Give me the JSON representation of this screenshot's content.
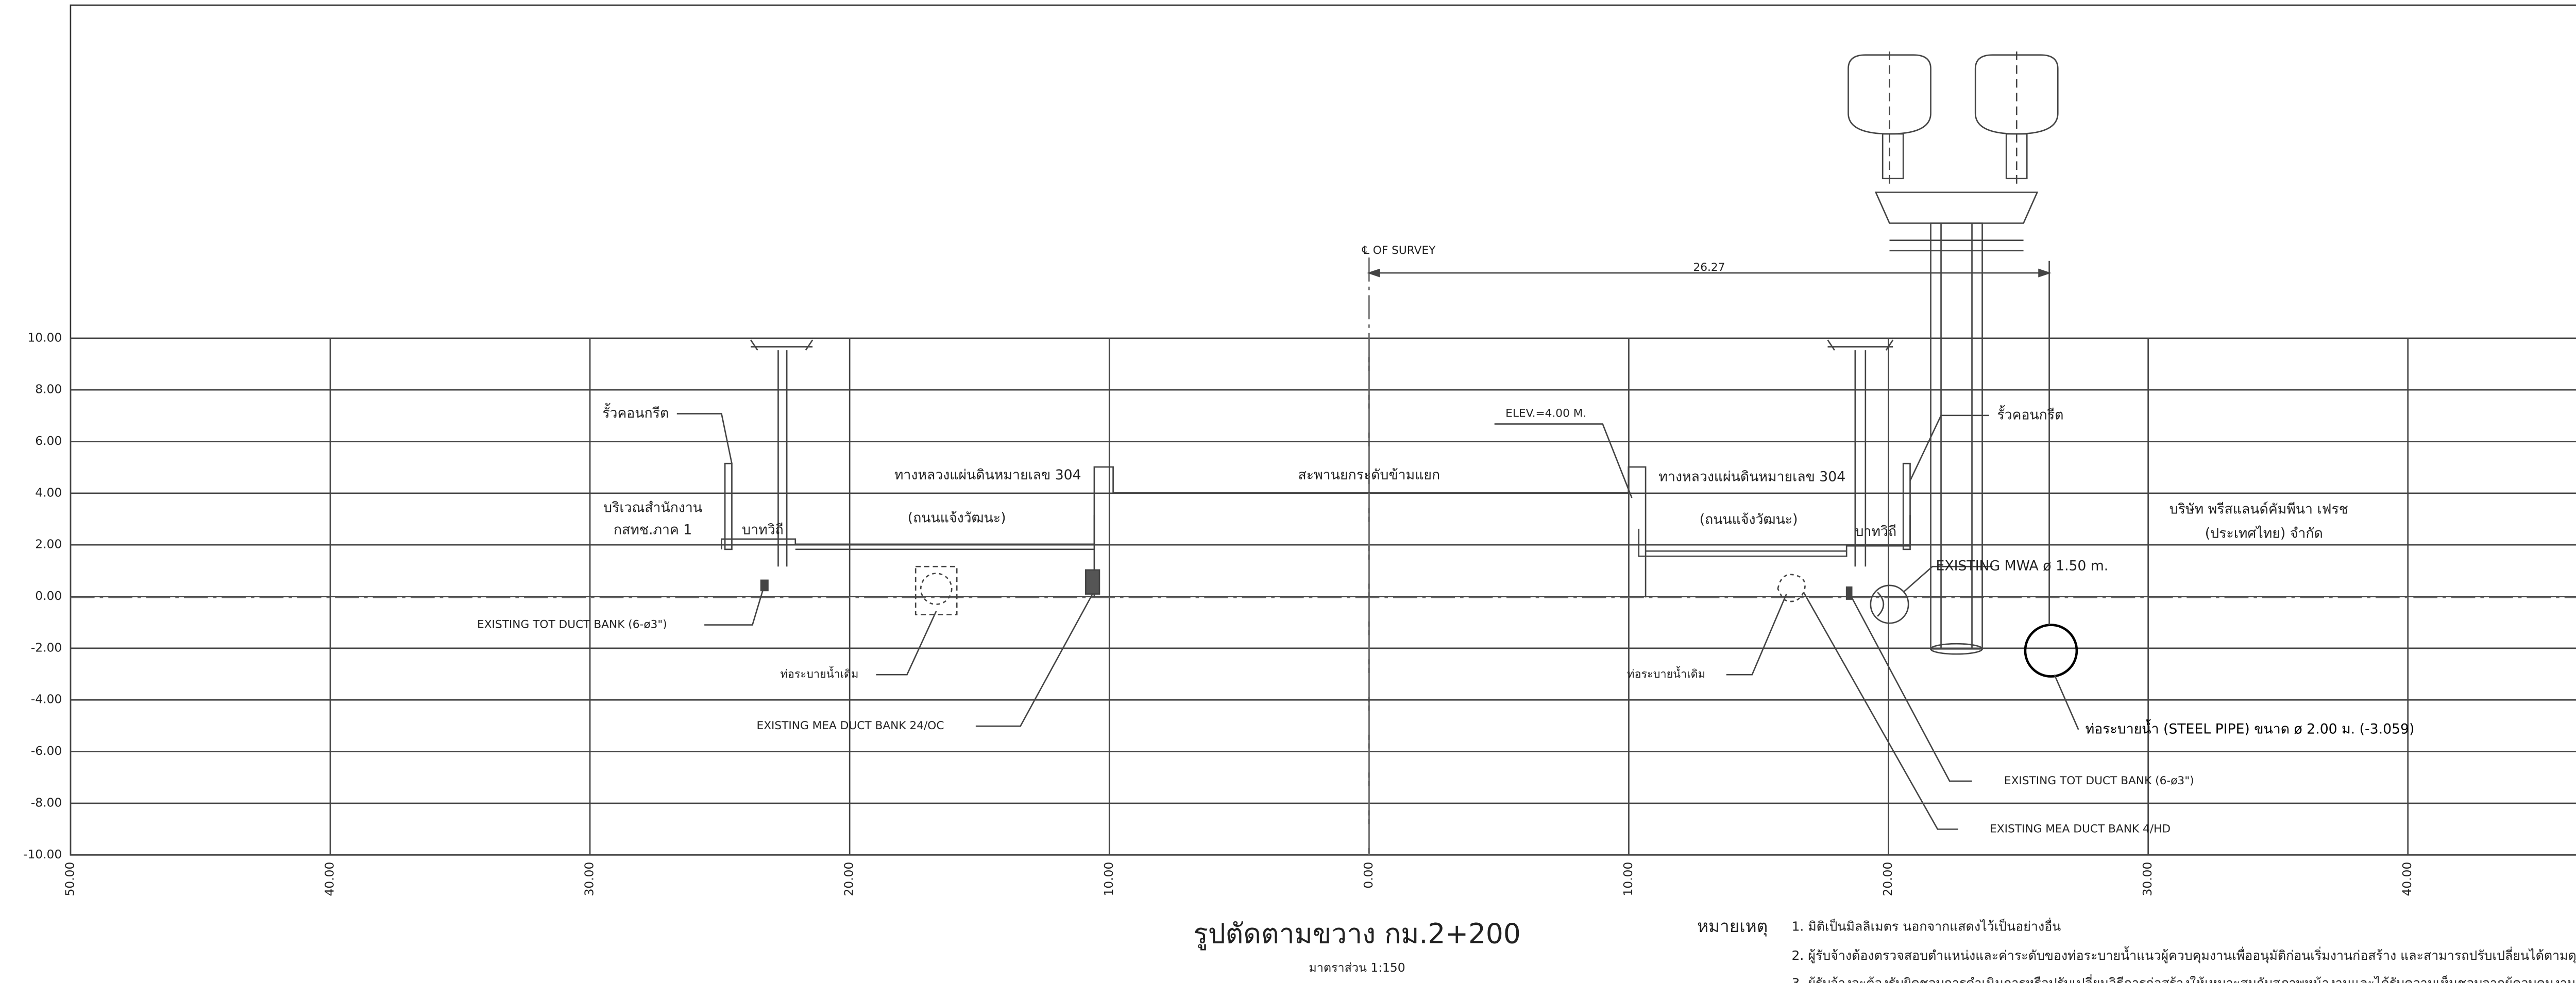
{
  "axis": {
    "y_ticks": [
      "10.00",
      "8.00",
      "6.00",
      "4.00",
      "2.00",
      "0.00",
      "-2.00",
      "-4.00",
      "-6.00",
      "-8.00",
      "-10.00"
    ],
    "x_ticks": [
      "50.00",
      "40.00",
      "30.00",
      "20.00",
      "10.00",
      "0.00",
      "10.00",
      "20.00",
      "30.00",
      "40.00",
      "50.00"
    ]
  },
  "annotations": [
    "℄ OF SURVEY",
    "26.27",
    "รั้วคอนกรีต",
    "รั้วคอนกรีต",
    "บริเวณสำนักงาน",
    "กสทช.ภาค 1",
    "บาทวิถี",
    "บาทวิถี",
    "ทางหลวงแผ่นดินหมายเลข 304",
    "ทางหลวงแผ่นดินหมายเลข 304",
    "(ถนนแจ้งวัฒนะ)",
    "(ถนนแจ้งวัฒนะ)",
    "สะพานยกระดับข้ามแยก",
    "ELEV.=4.00 M.",
    "บริษัท พรีสแลนด์คัมพีนา เฟรช",
    "(ประเทศไทย) จำกัด",
    "EXISTING MWA ø 1.50 m.",
    "EXISTING TOT DUCT BANK (6-ø3\")",
    "EXISTING TOT DUCT BANK (6-ø3\")",
    "ท่อระบายน้ำเดิม",
    "ท่อระบายน้ำเดิม",
    "EXISTING MEA DUCT BANK 24/OC",
    "ท่อระบายน้ำ (STEEL PIPE) ขนาด ø 2.00 ม. (-3.059)",
    "EXISTING MEA DUCT BANK 4/HD"
  ],
  "title": "รูปตัดตามขวาง กม.2+200",
  "scale": "มาตราส่วน 1:150",
  "notes": {
    "heading": "หมายเหตุ",
    "items": [
      "1. มิติเป็นมิลลิเมตร นอกจากแสดงไว้เป็นอย่างอื่น",
      "2. ผู้รับจ้างต้องตรวจสอบตำแหน่งและค่าระดับของท่อระบายน้ำแนวผู้ควบคุมงานเพื่ออนุมัติก่อนเริ่มงานก่อสร้าง และสามารถปรับเปลี่ยนได้ตามดุ",
      "3. ผู้รับจ้างจะต้องรับผิดชอบการดำเนินการหรือปรับเปลี่ยนวิธีการก่อสร้างให้เหมาะสมกับสภาพหน้างานและได้รับความเห็นชอบจากผู้ควบคุมงาน"
    ]
  }
}
